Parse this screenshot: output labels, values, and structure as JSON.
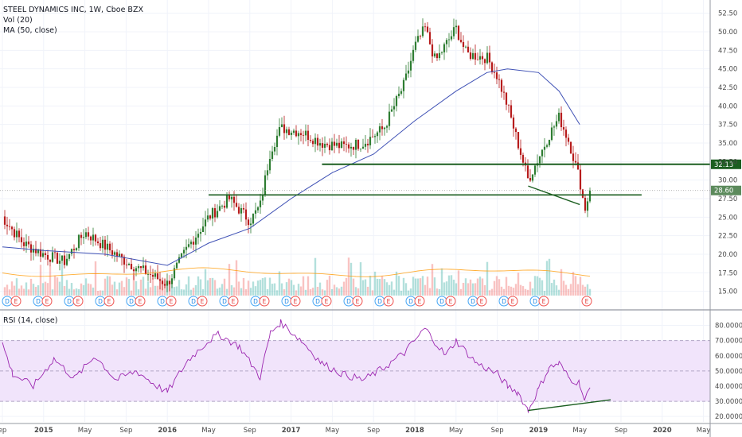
{
  "legend": {
    "title": "STEEL DYNAMICS INC, 1W, Cboe BZX",
    "vol": "Vol (20)",
    "ma": "MA (50, close)",
    "rsi": "RSI (14, close)"
  },
  "colors": {
    "up": "#26a69a",
    "down": "#ef5350",
    "candle_up": "#2e7d32",
    "candle_down": "#b71c1c",
    "ma": "#3f51b5",
    "vol_ma": "#ff9800",
    "rsi_line": "#9c27b0",
    "rsi_band": "#f1e4fb",
    "level_line": "#1b5e20",
    "price_badge": "#5c8a5c"
  },
  "chart_data": [
    {
      "type": "candlestick",
      "title": "STEEL DYNAMICS INC, 1W, Cboe BZX",
      "x_tick_labels": [
        "ep",
        "2015",
        "May",
        "Sep",
        "2016",
        "May",
        "Sep",
        "2017",
        "May",
        "Sep",
        "2018",
        "May",
        "Sep",
        "2019",
        "May",
        "Sep",
        "2020",
        "May"
      ],
      "y_tick_labels": [
        "52.50",
        "50.00",
        "47.50",
        "45.00",
        "42.50",
        "40.00",
        "37.50",
        "35.00",
        "32.50",
        "30.00",
        "27.50",
        "25.00",
        "22.50",
        "20.00",
        "17.50",
        "15.00"
      ],
      "ylim": [
        14,
        53
      ],
      "price_path": [
        [
          "2014-09",
          25.0
        ],
        [
          "2014-11",
          21.5
        ],
        [
          "2015-01",
          20.0
        ],
        [
          "2015-03",
          19.0
        ],
        [
          "2015-05",
          23.0
        ],
        [
          "2015-07",
          21.0
        ],
        [
          "2015-09",
          19.0
        ],
        [
          "2015-11",
          17.5
        ],
        [
          "2016-01",
          16.0
        ],
        [
          "2016-03",
          21.0
        ],
        [
          "2016-05",
          25.0
        ],
        [
          "2016-07",
          27.5
        ],
        [
          "2016-09",
          24.5
        ],
        [
          "2016-10",
          26.5
        ],
        [
          "2016-11",
          34.0
        ],
        [
          "2016-12",
          37.0
        ],
        [
          "2017-02",
          36.5
        ],
        [
          "2017-04",
          35.0
        ],
        [
          "2017-06",
          34.5
        ],
        [
          "2017-08",
          35.0
        ],
        [
          "2017-10",
          37.0
        ],
        [
          "2017-12",
          43.0
        ],
        [
          "2018-01",
          48.0
        ],
        [
          "2018-02",
          50.5
        ],
        [
          "2018-03",
          46.0
        ],
        [
          "2018-05",
          50.5
        ],
        [
          "2018-06",
          47.0
        ],
        [
          "2018-08",
          46.5
        ],
        [
          "2018-09",
          44.0
        ],
        [
          "2018-10",
          40.0
        ],
        [
          "2018-11",
          35.0
        ],
        [
          "2018-12",
          30.0
        ],
        [
          "2019-01",
          33.0
        ],
        [
          "2019-02",
          36.0
        ],
        [
          "2019-03",
          38.5
        ],
        [
          "2019-04",
          35.0
        ],
        [
          "2019-05",
          30.0
        ],
        [
          "2019-05b",
          26.0
        ],
        [
          "2019-06",
          28.6
        ]
      ],
      "ma_path": [
        [
          "2014-09",
          21.0
        ],
        [
          "2015-01",
          20.5
        ],
        [
          "2015-07",
          20.0
        ],
        [
          "2016-01",
          18.5
        ],
        [
          "2016-05",
          21.5
        ],
        [
          "2016-09",
          23.5
        ],
        [
          "2017-01",
          27.5
        ],
        [
          "2017-05",
          31.0
        ],
        [
          "2017-09",
          33.5
        ],
        [
          "2018-01",
          38.0
        ],
        [
          "2018-05",
          42.0
        ],
        [
          "2018-08",
          44.5
        ],
        [
          "2018-10",
          45.0
        ],
        [
          "2019-01",
          44.5
        ],
        [
          "2019-03",
          42.0
        ],
        [
          "2019-05",
          37.5
        ]
      ],
      "horizontal_levels": [
        {
          "price": 32.13,
          "label": "32.13"
        },
        {
          "price": 28.0
        }
      ],
      "trendline": {
        "from": [
          "2018-12",
          29.2
        ],
        "to": [
          "2019-05",
          26.7
        ]
      },
      "last_price": {
        "value": 28.6,
        "label": "28.60"
      },
      "event_markers": [
        "D",
        "E",
        "D",
        "E",
        "D",
        "E",
        "D",
        "E",
        "D",
        "E",
        "D",
        "E",
        "D",
        "E",
        "D",
        "E",
        "D",
        "E",
        "D",
        "E",
        "D",
        "E",
        "D",
        "E",
        "D",
        "E",
        "D",
        "E",
        "D",
        "E",
        "D",
        "E",
        "D",
        "E",
        "D",
        "E",
        "E"
      ]
    },
    {
      "type": "line",
      "title": "RSI (14, close)",
      "y_tick_labels": [
        "80.0000",
        "70.0000",
        "60.0000",
        "50.0000",
        "40.0000",
        "30.0000",
        "20.0000"
      ],
      "ylim": [
        18,
        85
      ],
      "band": [
        30,
        70
      ],
      "series": [
        {
          "values": [
            [
              "2014-09",
              68
            ],
            [
              "2014-10",
              48
            ],
            [
              "2014-12",
              40
            ],
            [
              "2015-02",
              58
            ],
            [
              "2015-04",
              45
            ],
            [
              "2015-06",
              60
            ],
            [
              "2015-08",
              44
            ],
            [
              "2015-10",
              50
            ],
            [
              "2015-12",
              40
            ],
            [
              "2016-01",
              36
            ],
            [
              "2016-03",
              57
            ],
            [
              "2016-05",
              70
            ],
            [
              "2016-06",
              74
            ],
            [
              "2016-08",
              66
            ],
            [
              "2016-10",
              46
            ],
            [
              "2016-11",
              75
            ],
            [
              "2016-12",
              82
            ],
            [
              "2017-02",
              70
            ],
            [
              "2017-04",
              55
            ],
            [
              "2017-06",
              48
            ],
            [
              "2017-08",
              44
            ],
            [
              "2017-10",
              52
            ],
            [
              "2017-12",
              62
            ],
            [
              "2018-02",
              78
            ],
            [
              "2018-04",
              60
            ],
            [
              "2018-05",
              70
            ],
            [
              "2018-07",
              55
            ],
            [
              "2018-09",
              48
            ],
            [
              "2018-10",
              40
            ],
            [
              "2018-11",
              36
            ],
            [
              "2018-12",
              24
            ],
            [
              "2019-01",
              38
            ],
            [
              "2019-02",
              52
            ],
            [
              "2019-03",
              55
            ],
            [
              "2019-04",
              45
            ],
            [
              "2019-05",
              42
            ],
            [
              "2019-05b",
              30
            ],
            [
              "2019-06",
              39
            ]
          ]
        }
      ],
      "trendline": {
        "from": [
          "2018-12",
          24
        ],
        "to": [
          "2019-08",
          31
        ]
      }
    }
  ]
}
